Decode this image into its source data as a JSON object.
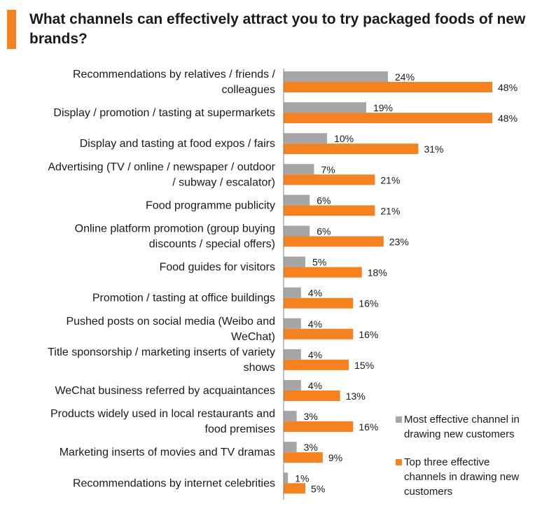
{
  "colors": {
    "accent": "#f58220",
    "series1": "#a6a6a6",
    "series2": "#f58220"
  },
  "title": "What channels can effectively attract you to try packaged foods of new brands?",
  "chart_data": {
    "type": "bar",
    "orientation": "horizontal",
    "title": "What channels can effectively attract you to try packaged foods of new brands?",
    "categories": [
      "Recommendations by relatives / friends / colleagues",
      "Display / promotion / tasting at supermarkets",
      "Display and tasting at food expos / fairs",
      "Advertising (TV / online / newspaper / outdoor / subway / escalator)",
      "Food programme publicity",
      "Online platform promotion (group buying discounts / special offers)",
      "Food guides for visitors",
      "Promotion / tasting at office buildings",
      "Pushed posts on social media (Weibo and WeChat)",
      "Title sponsorship / marketing inserts of variety shows",
      "WeChat business referred by acquaintances",
      "Products widely used in local restaurants and food premises",
      "Marketing inserts of movies and TV dramas",
      "Recommendations by internet celebrities"
    ],
    "category_lines": [
      [
        "Recommendations by relatives / friends /",
        "colleagues"
      ],
      [
        "Display / promotion / tasting at supermarkets"
      ],
      [
        "Display and tasting at food expos / fairs"
      ],
      [
        "Advertising (TV / online / newspaper / outdoor",
        "/ subway / escalator)"
      ],
      [
        "Food programme publicity"
      ],
      [
        "Online platform promotion (group buying",
        "discounts / special offers)"
      ],
      [
        "Food guides for visitors"
      ],
      [
        "Promotion / tasting at office buildings"
      ],
      [
        "Pushed posts on social media (Weibo and",
        "WeChat)"
      ],
      [
        "Title sponsorship / marketing inserts of variety",
        "shows"
      ],
      [
        "WeChat business referred by acquaintances"
      ],
      [
        "Products widely used in local restaurants and",
        "food premises"
      ],
      [
        "Marketing inserts of movies and TV dramas"
      ],
      [
        "Recommendations by internet celebrities"
      ]
    ],
    "series": [
      {
        "name": "Most effective channel in drawing new customers",
        "name_lines": [
          "Most effective channel in",
          "drawing new customers"
        ],
        "values": [
          24,
          19,
          10,
          7,
          6,
          6,
          5,
          4,
          4,
          4,
          4,
          3,
          3,
          1
        ]
      },
      {
        "name": "Top three effective channels in drawing new customers",
        "name_lines": [
          "Top three effective",
          "channels in drawing new",
          "customers"
        ],
        "values": [
          48,
          48,
          31,
          21,
          21,
          23,
          18,
          16,
          16,
          15,
          13,
          16,
          9,
          5
        ]
      }
    ],
    "value_suffix": "%",
    "xlim": [
      0,
      48
    ],
    "legend_position": "bottom-right",
    "grid": false
  }
}
